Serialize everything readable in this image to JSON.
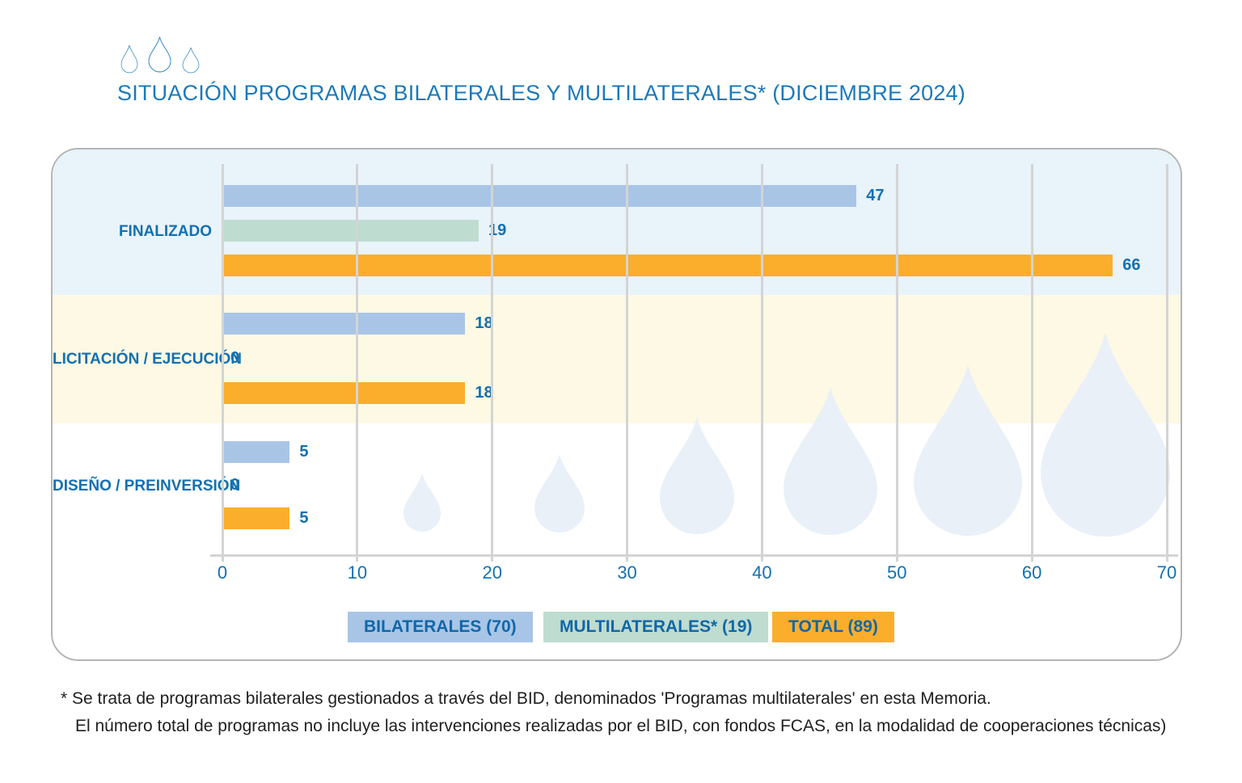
{
  "header": {
    "title": "SITUACIÓN PROGRAMAS BILATERALES Y MULTILATERALES* (DICIEMBRE 2024)",
    "logo_icon": "water-drops-icon"
  },
  "chart_data": {
    "type": "bar",
    "orientation": "horizontal",
    "title": "SITUACIÓN PROGRAMAS BILATERALES Y MULTILATERALES* (DICIEMBRE 2024)",
    "categories": [
      "FINALIZADO",
      "LICITACIÓN / EJECUCIÓN",
      "DISEÑO / PREINVERSIÓN"
    ],
    "series": [
      {
        "name": "BILATERALES (70)",
        "color": "#A9C5E6",
        "values": [
          47,
          18,
          5
        ]
      },
      {
        "name": "MULTILATERALES* (19)",
        "color": "#BFDCD0",
        "values": [
          19,
          0,
          0
        ]
      },
      {
        "name": "TOTAL (89)",
        "color": "#FBAE2C",
        "values": [
          66,
          18,
          5
        ]
      }
    ],
    "x_ticks": [
      0,
      10,
      20,
      30,
      40,
      50,
      60,
      70
    ],
    "xlim": [
      0,
      70
    ],
    "grid": true,
    "gridlines_on_top": true,
    "legend_position": "bottom",
    "row_band_colors": [
      "#E9F3FA",
      "#FDF9E4",
      "#FFFFFF"
    ],
    "watermark": "water-drops"
  },
  "footnote": {
    "line1": "* Se trata de programas bilaterales gestionados a través del BID, denominados 'Programas multilaterales' en esta Memoria.",
    "line2": "El número total de programas no incluye las intervenciones realizadas por el BID, con fondos FCAS, en la modalidad de cooperaciones técnicas)"
  },
  "colors": {
    "title_text": "#1B79B9",
    "value_text": "#1270B2",
    "gridline": "#D4D4D4",
    "card_border": "#B5B5B5",
    "watermark_drop": "#E9F0F8",
    "footnote_text": "#1F1F1F"
  }
}
